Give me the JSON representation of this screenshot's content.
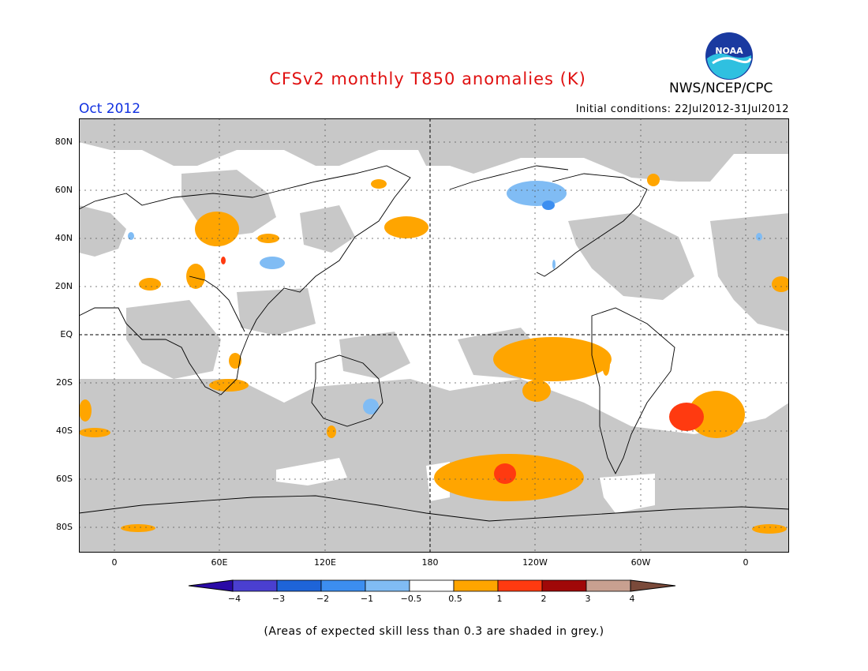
{
  "header": {
    "title": "CFSv2 monthly T850 anomalies (K)",
    "month": "Oct 2012",
    "initial_conditions": "Initial conditions: 22Jul2012-31Jul2012",
    "agency": "NWS/NCEP/CPC",
    "logo_text": "NOAA"
  },
  "map": {
    "lat_labels": [
      "80N",
      "60N",
      "40N",
      "20N",
      "EQ",
      "20S",
      "40S",
      "60S",
      "80S"
    ],
    "lon_labels": [
      "0",
      "60E",
      "120E",
      "180",
      "120W",
      "60W",
      "0"
    ]
  },
  "colorbar": {
    "labels": [
      "−4",
      "−3",
      "−2",
      "−1",
      "−0.5",
      "0.5",
      "1",
      "2",
      "3",
      "4"
    ],
    "colors": [
      "#2a0aa6",
      "#4a3fd0",
      "#1e64d8",
      "#3c8ef0",
      "#80bcf4",
      "#ffffff",
      "#ffa500",
      "#ff3a10",
      "#a00808",
      "#c8a090",
      "#7a4a3a"
    ],
    "units": "K"
  },
  "footnote": "(Areas of expected skill less than 0.3 are shaded in grey.)",
  "colors": {
    "title": "#e01010",
    "month": "#1030e0",
    "grey_mask": "#c8c8c8"
  }
}
